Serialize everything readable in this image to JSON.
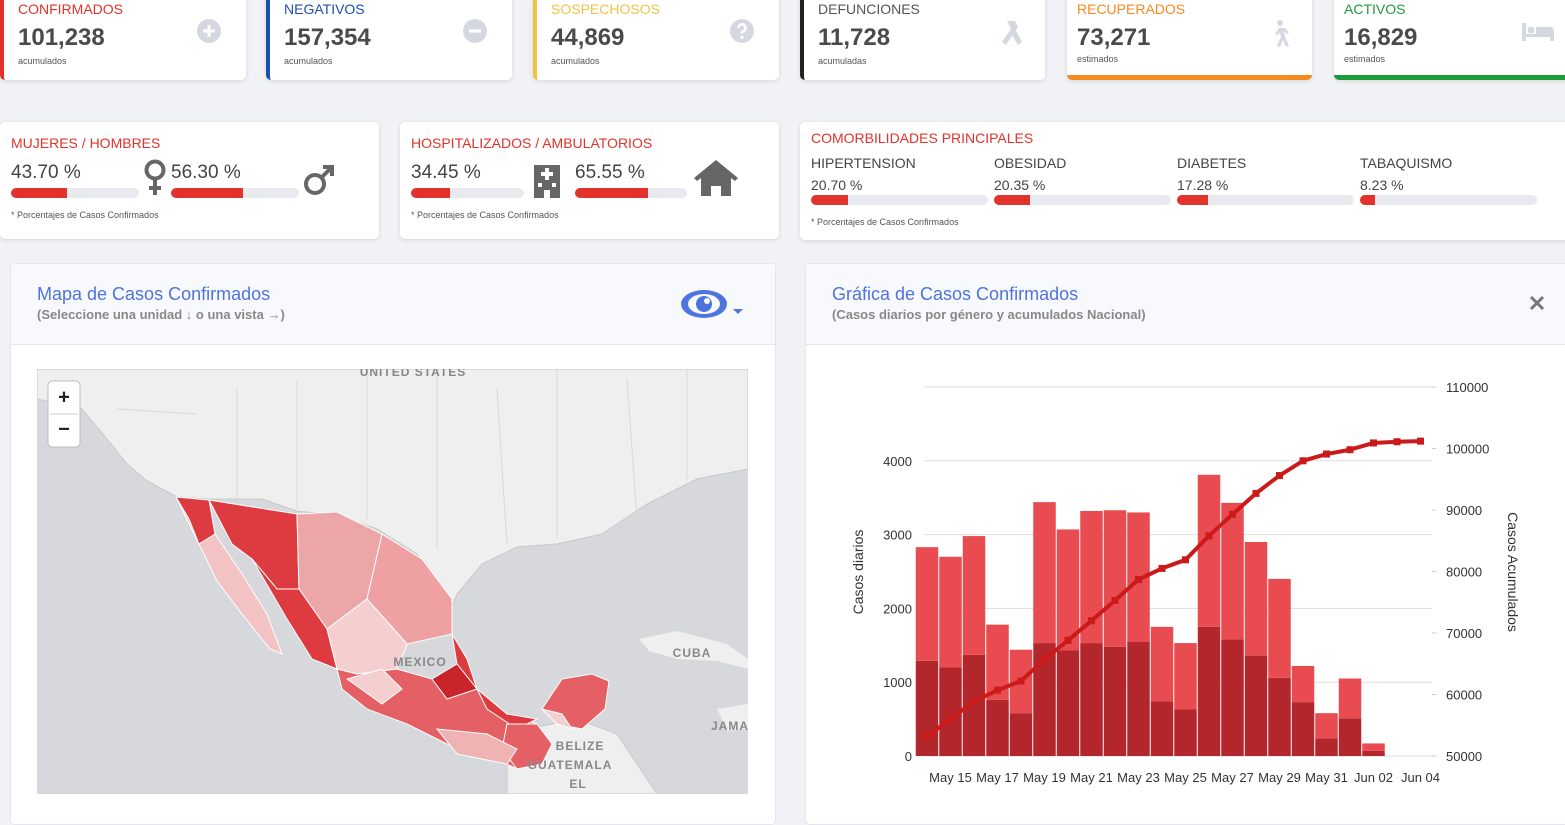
{
  "cards": [
    {
      "label": "CONFIRMADOS",
      "value": "101,238",
      "note": "acumulados"
    },
    {
      "label": "NEGATIVOS",
      "value": "157,354",
      "note": "acumulados"
    },
    {
      "label": "SOSPECHOSOS",
      "value": "44,869",
      "note": "acumulados"
    },
    {
      "label": "DEFUNCIONES",
      "value": "11,728",
      "note": "acumuladas"
    },
    {
      "label": "RECUPERADOS",
      "value": "73,271",
      "note": "estimados"
    },
    {
      "label": "ACTIVOS",
      "value": "16,829",
      "note": "estimados"
    }
  ],
  "gender": {
    "title": "MUJERES / HOMBRES",
    "items": [
      {
        "value": 43.7,
        "label": "43.70 %"
      },
      {
        "value": 56.3,
        "label": "56.30 %"
      }
    ],
    "note": "* Porcentajes  de Casos Confirmados"
  },
  "hospital": {
    "title": "HOSPITALIZADOS / AMBULATORIOS",
    "items": [
      {
        "value": 34.45,
        "label": "34.45 %"
      },
      {
        "value": 65.55,
        "label": "65.55 %"
      }
    ],
    "note": "* Porcentajes  de Casos Confirmados"
  },
  "comorbidities": {
    "title": "COMORBILIDADES PRINCIPALES",
    "items": [
      {
        "name": "HIPERTENSION",
        "value": 20.7,
        "label": "20.70 %"
      },
      {
        "name": "OBESIDAD",
        "value": 20.35,
        "label": "20.35 %"
      },
      {
        "name": "DIABETES",
        "value": 17.28,
        "label": "17.28 %"
      },
      {
        "name": "TABAQUISMO",
        "value": 8.23,
        "label": "8.23 %"
      }
    ],
    "note": "* Porcentajes  de Casos Confirmados"
  },
  "map_panel": {
    "title": "Mapa de Casos Confirmados",
    "subtitle": "(Seleccione una unidad ↓ o una vista →)",
    "zoom_in": "+",
    "zoom_out": "−",
    "labels": [
      "UNITED STATES",
      "MEXICO",
      "CUBA",
      "BELIZE",
      "GUATEMALA",
      "JAMA",
      "EL"
    ]
  },
  "chart_panel": {
    "title": "Gráfica de Casos Confirmados",
    "subtitle": "(Casos diarios por género y acumulados Nacional)",
    "chart_data": {
      "type": "bar",
      "stacked": true,
      "grid": true,
      "categories": [
        null,
        "May 15",
        null,
        "May 17",
        null,
        "May 19",
        null,
        "May 21",
        null,
        "May 23",
        null,
        "May 25",
        null,
        "May 27",
        null,
        "May 29",
        null,
        "May 31",
        null,
        "Jun 02",
        null,
        "Jun 04"
      ],
      "series": [
        {
          "color": "#b3262b",
          "values": [
            1290,
            1200,
            1370,
            760,
            580,
            1530,
            1430,
            1530,
            1480,
            1550,
            740,
            630,
            1750,
            1580,
            1360,
            1060,
            730,
            240,
            510,
            70,
            null,
            null
          ]
        },
        {
          "color": "#e84b50",
          "values": [
            1540,
            1500,
            1610,
            1020,
            860,
            1910,
            1640,
            1790,
            1850,
            1750,
            1010,
            900,
            2060,
            1850,
            1540,
            1340,
            490,
            340,
            540,
            100,
            null,
            null
          ]
        },
        {
          "type": "line",
          "axis": "y2",
          "color": "#cc1a1a",
          "values": [
            53200,
            56000,
            58900,
            60700,
            62200,
            65700,
            68800,
            72000,
            75300,
            78700,
            80500,
            81900,
            85800,
            89300,
            92700,
            95600,
            98000,
            99100,
            99800,
            100900,
            101100,
            101200
          ]
        }
      ],
      "ylim": [
        0,
        5000
      ],
      "yticks": [
        0,
        1000,
        2000,
        3000,
        4000
      ],
      "y2lim": [
        50000,
        110000
      ],
      "y2ticks": [
        50000,
        60000,
        70000,
        80000,
        90000,
        100000,
        110000
      ],
      "ylabel": "Casos diarios",
      "y2label": "Casos Acumulados"
    }
  }
}
